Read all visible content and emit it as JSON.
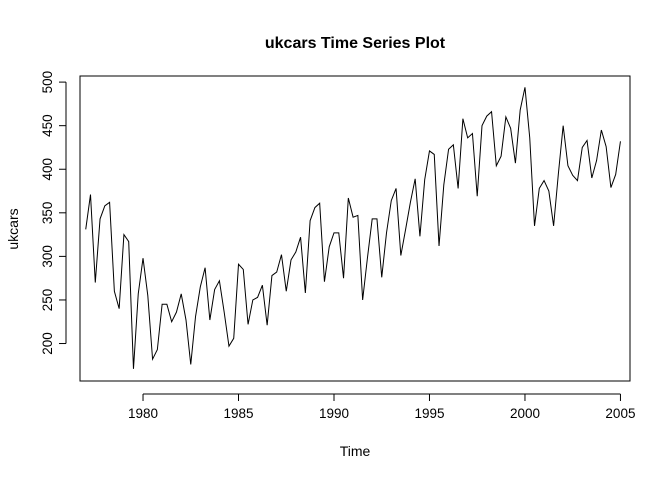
{
  "chart_data": {
    "type": "line",
    "title": "ukcars Time Series Plot",
    "xlabel": "Time",
    "ylabel": "ukcars",
    "xlim": [
      1976.7,
      2005.5
    ],
    "ylim": [
      157,
      507
    ],
    "x_ticks": [
      1980,
      1985,
      1990,
      1995,
      2000,
      2005
    ],
    "y_ticks": [
      200,
      250,
      300,
      350,
      400,
      450,
      500
    ],
    "x_start": 1977.0,
    "frequency": 4,
    "series": [
      {
        "name": "ukcars",
        "color": "#000000",
        "values": [
          331,
          371,
          270,
          343,
          358,
          362,
          260,
          240,
          325,
          317,
          171,
          257,
          298,
          255,
          182,
          193,
          245,
          245,
          225,
          236,
          257,
          227,
          176,
          231,
          265,
          287,
          227,
          262,
          272,
          236,
          197,
          206,
          291,
          285,
          222,
          250,
          253,
          267,
          221,
          278,
          282,
          302,
          260,
          296,
          305,
          322,
          258,
          341,
          356,
          361,
          271,
          311,
          327,
          327,
          275,
          367,
          345,
          347,
          250,
          298,
          343,
          343,
          276,
          327,
          364,
          378,
          301,
          331,
          362,
          389,
          323,
          388,
          421,
          417,
          312,
          382,
          423,
          428,
          378,
          458,
          436,
          441,
          369,
          450,
          461,
          466,
          404,
          415,
          460,
          447,
          407,
          468,
          494,
          436,
          335,
          378,
          387,
          375,
          335,
          395,
          450,
          404,
          393,
          387,
          425,
          433,
          390,
          410,
          445,
          426,
          379,
          394,
          432
        ]
      }
    ]
  }
}
